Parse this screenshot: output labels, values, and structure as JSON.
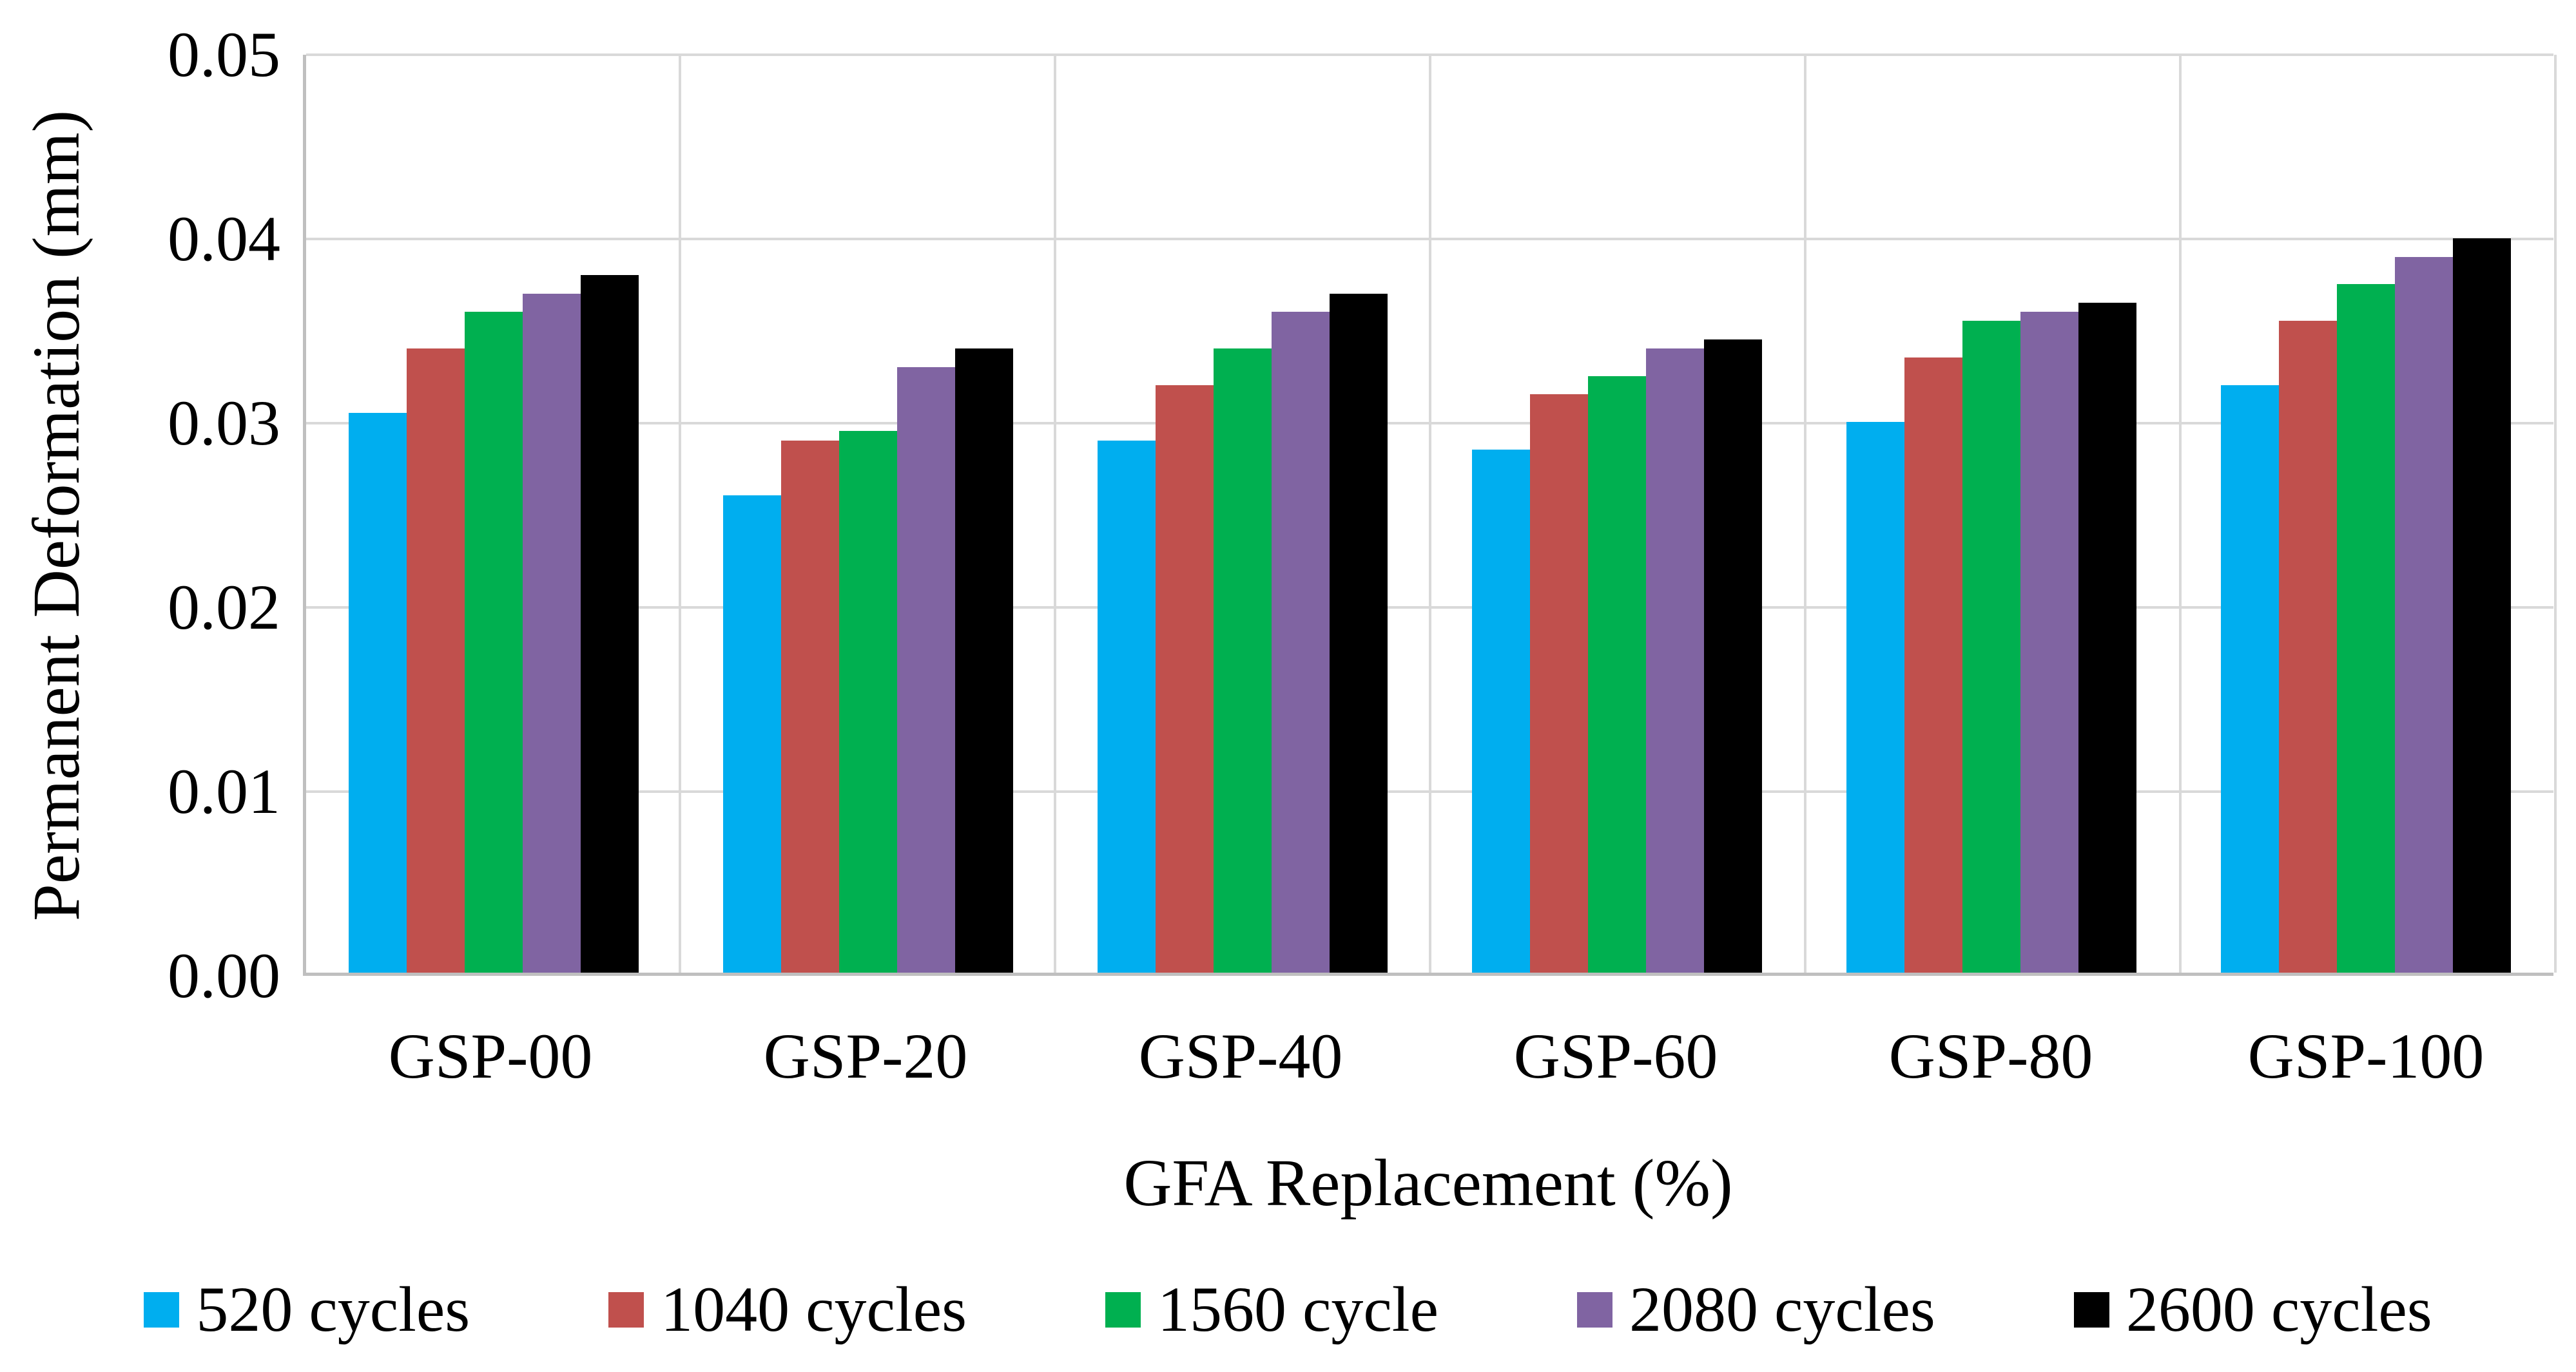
{
  "chart_data": {
    "type": "bar",
    "title": "",
    "categories": [
      "GSP-00",
      "GSP-20",
      "GSP-40",
      "GSP-60",
      "GSP-80",
      "GSP-100"
    ],
    "series": [
      {
        "name": "520 cycles",
        "color": "#00AEEF",
        "values": [
          0.0305,
          0.026,
          0.029,
          0.0285,
          0.03,
          0.032
        ]
      },
      {
        "name": "1040 cycles",
        "color": "#C0504D",
        "values": [
          0.034,
          0.029,
          0.032,
          0.0315,
          0.0335,
          0.0355
        ]
      },
      {
        "name": "1560 cycle",
        "color": "#00B050",
        "values": [
          0.036,
          0.0295,
          0.034,
          0.0325,
          0.0355,
          0.0375
        ]
      },
      {
        "name": "2080 cycles",
        "color": "#8064A2",
        "values": [
          0.037,
          0.033,
          0.036,
          0.034,
          0.036,
          0.039
        ]
      },
      {
        "name": "2600 cycles",
        "color": "#000000",
        "values": [
          0.038,
          0.034,
          0.037,
          0.0345,
          0.0365,
          0.04
        ]
      }
    ],
    "xlabel": "GFA Replacement (%)",
    "ylabel": "Permanent Deformation (mm)",
    "ylim": [
      0,
      0.05
    ],
    "ytick_step": 0.01,
    "ytick_labels": [
      "0.00",
      "0.01",
      "0.02",
      "0.03",
      "0.04",
      "0.05"
    ],
    "grid": true,
    "legend_position": "bottom"
  },
  "colors": {
    "gridline": "#d9d9d9",
    "axis_line": "#bfbfbf",
    "background": "#ffffff",
    "text": "#000000"
  }
}
